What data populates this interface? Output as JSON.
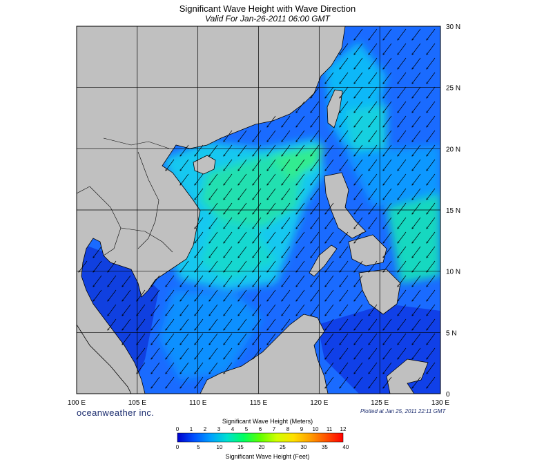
{
  "title": "Significant Wave Height with Wave Direction",
  "subtitle": "Valid For Jan-26-2011 06:00 GMT",
  "brand": "oceanweather inc.",
  "plotted": "Plotted at Jan 25, 2011 22:11 GMT",
  "map": {
    "lon_range": [
      100,
      130
    ],
    "lat_range": [
      0,
      30
    ],
    "lon_labels": [
      "100 E",
      "105 E",
      "110 E",
      "115 E",
      "120 E",
      "125 E",
      "130 E"
    ],
    "lat_labels": [
      "30 N",
      "25 N",
      "20 N",
      "15 N",
      "10 N",
      "5 N",
      "0"
    ],
    "land_color": "#c0c0c0",
    "grid_lines": true,
    "arrow_direction": "southwest"
  },
  "colorbar": {
    "title_meters": "Significant Wave Height (Meters)",
    "title_feet": "Significant Wave Height (Feet)",
    "meter_ticks": [
      "0",
      "1",
      "2",
      "3",
      "4",
      "5",
      "6",
      "7",
      "8",
      "9",
      "10",
      "11",
      "12"
    ],
    "feet_ticks": [
      "0",
      "5",
      "10",
      "15",
      "20",
      "25",
      "30",
      "35",
      "40"
    ],
    "colors": [
      "#0000cc",
      "#0050ff",
      "#00a0ff",
      "#00e0d0",
      "#00ff60",
      "#60ff00",
      "#d0ff00",
      "#ffe000",
      "#ffa000",
      "#ff5000",
      "#ff0000"
    ]
  }
}
